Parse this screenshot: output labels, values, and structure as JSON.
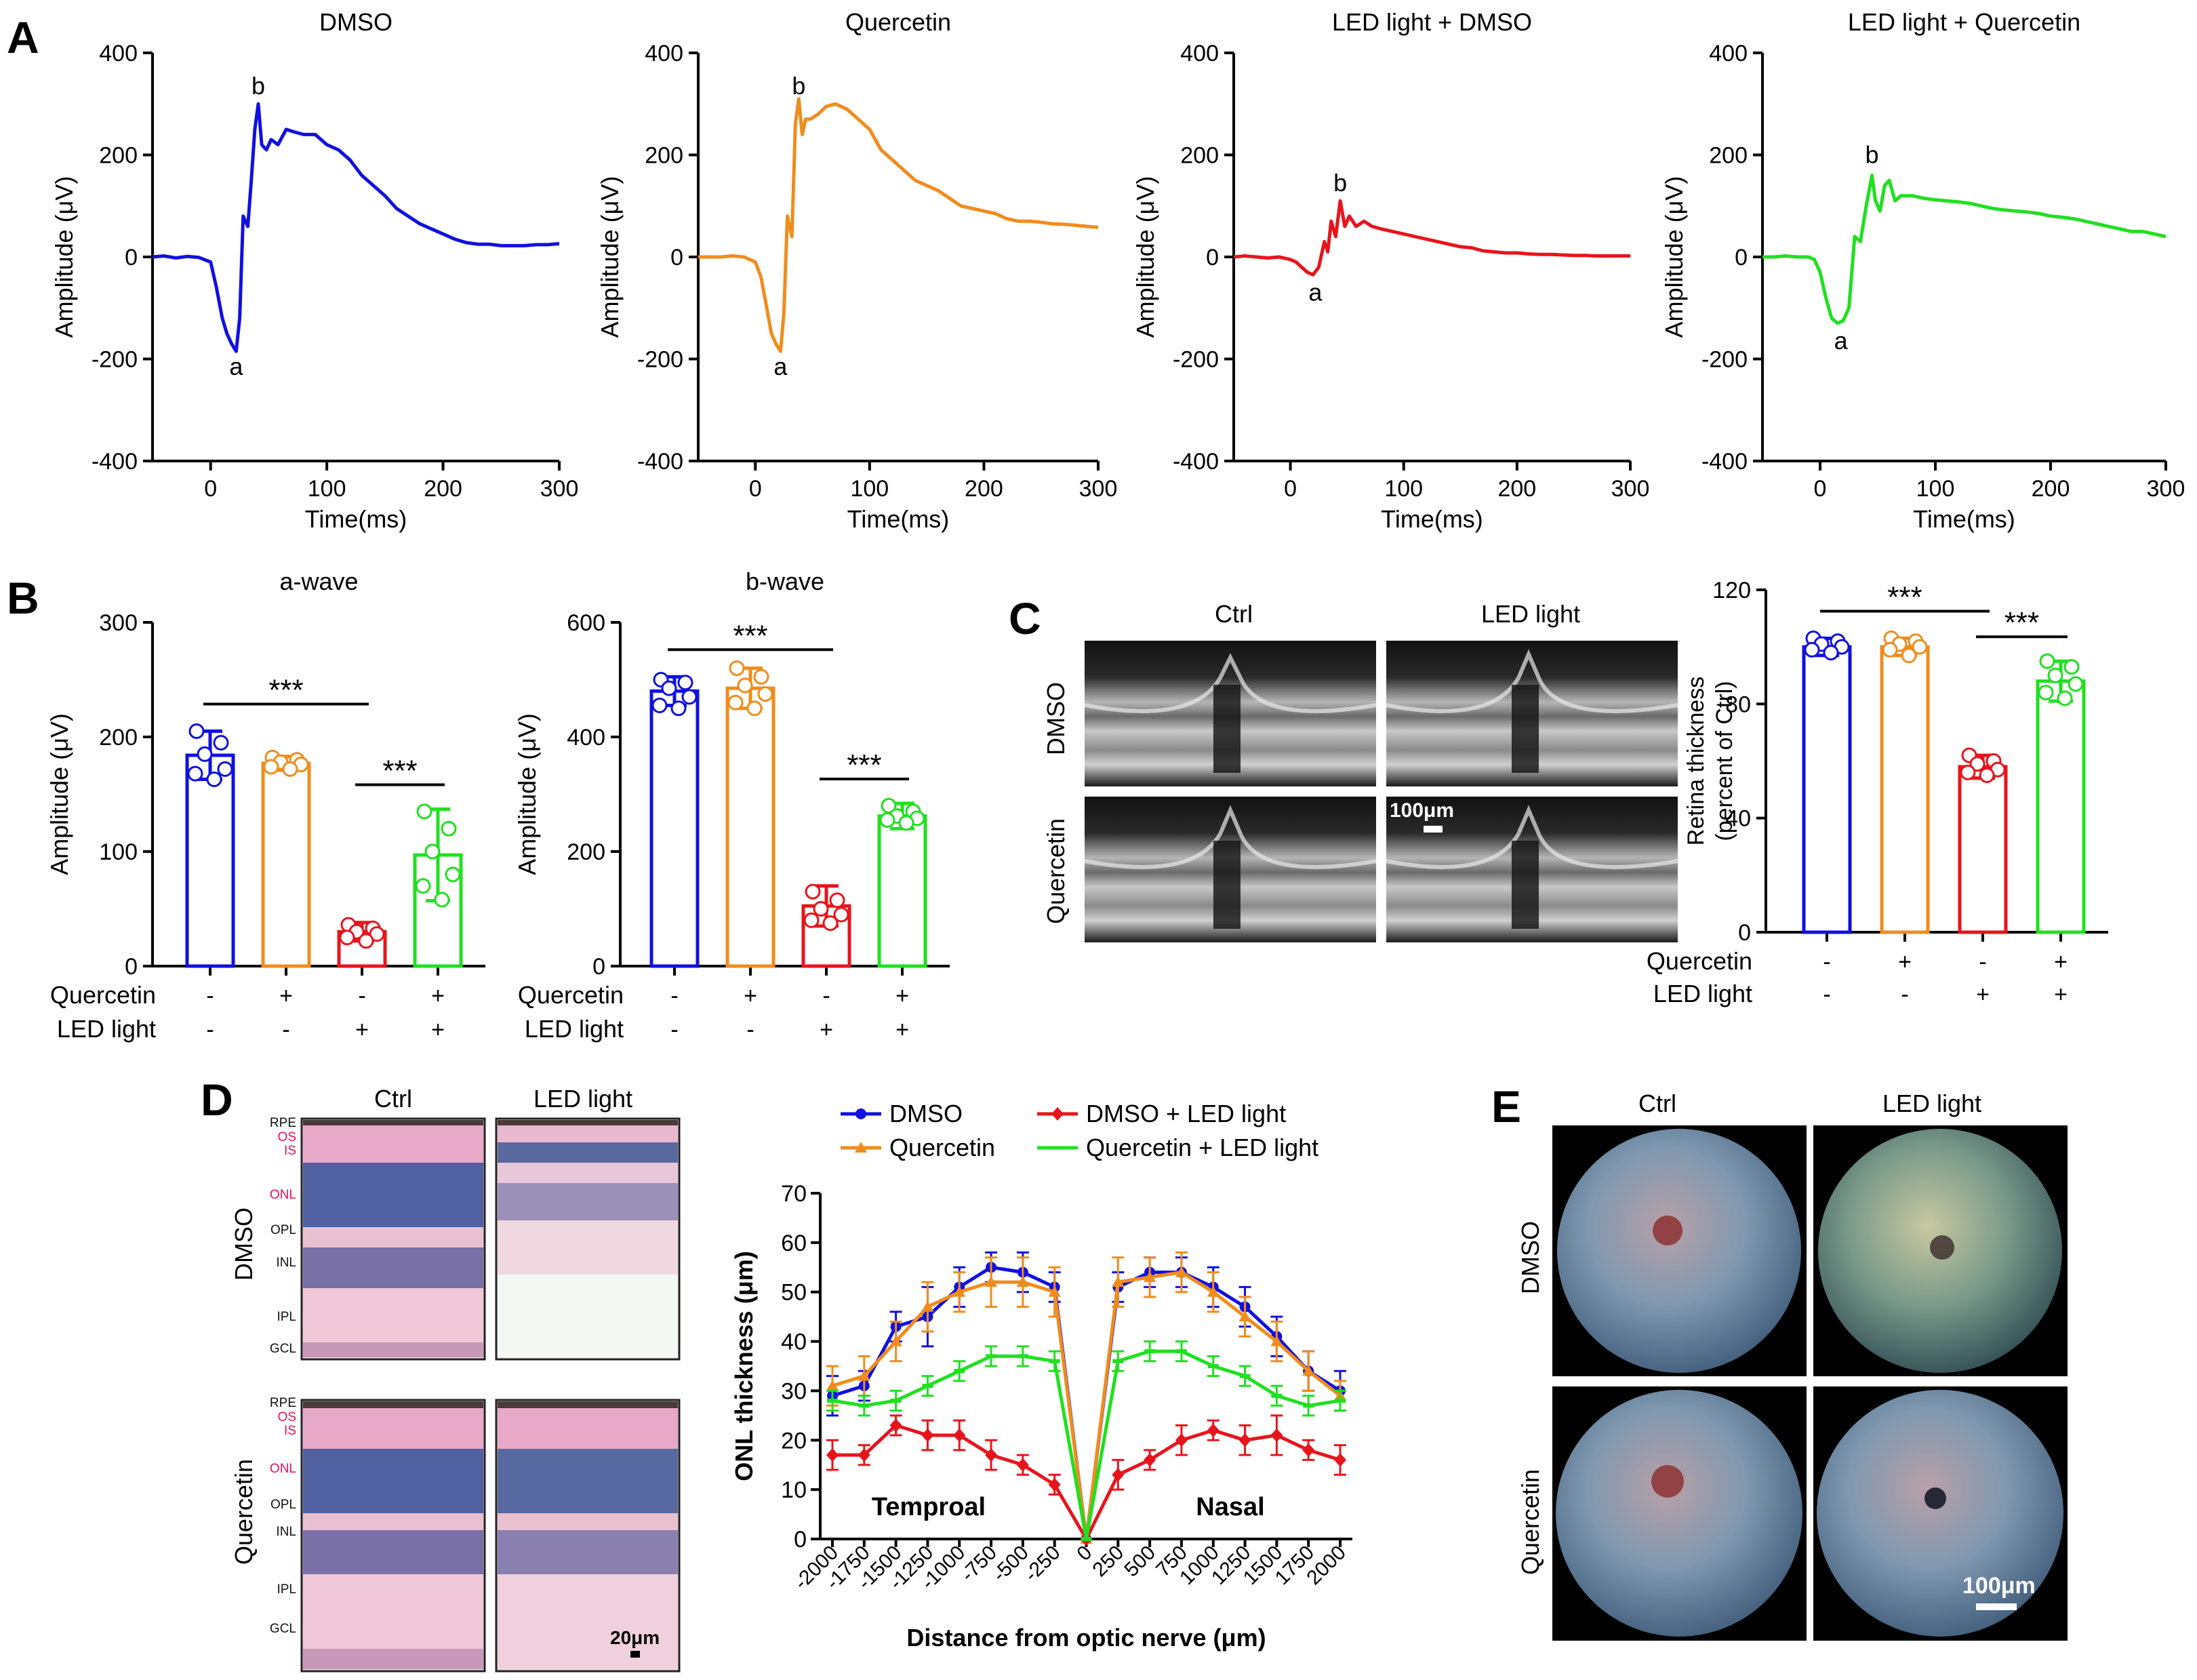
{
  "panel_labels": {
    "A": "A",
    "B": "B",
    "C": "C",
    "D": "D",
    "E": "E"
  },
  "chart_data": [
    {
      "id": "erg-dmso",
      "type": "line",
      "title": "DMSO",
      "xlabel": "Time(ms)",
      "ylabel": "Amplitude (μV)",
      "xlim": [
        -50,
        300
      ],
      "ylim": [
        -400,
        400
      ],
      "xticks": [
        0,
        100,
        200,
        300
      ],
      "yticks": [
        -400,
        -200,
        0,
        200,
        400
      ],
      "color": "#1010e0",
      "x": [
        -50,
        -40,
        -30,
        -20,
        -10,
        0,
        5,
        10,
        14,
        18,
        22,
        25,
        28,
        32,
        35,
        38,
        41,
        44,
        48,
        52,
        58,
        65,
        72,
        80,
        90,
        100,
        110,
        120,
        130,
        140,
        150,
        160,
        170,
        180,
        190,
        200,
        210,
        220,
        230,
        240,
        250,
        260,
        270,
        280,
        290,
        300
      ],
      "y": [
        0,
        2,
        -2,
        1,
        -1,
        -10,
        -60,
        -120,
        -150,
        -170,
        -185,
        -120,
        80,
        60,
        150,
        250,
        300,
        220,
        210,
        230,
        220,
        250,
        245,
        240,
        240,
        220,
        210,
        190,
        160,
        140,
        120,
        95,
        80,
        65,
        55,
        45,
        35,
        28,
        25,
        25,
        22,
        22,
        22,
        24,
        24,
        26
      ],
      "annotations": [
        {
          "text": "a",
          "x": 22,
          "y": -215
        },
        {
          "text": "b",
          "x": 41,
          "y": 335
        }
      ]
    },
    {
      "id": "erg-quercetin",
      "type": "line",
      "title": "Quercetin",
      "xlabel": "Time(ms)",
      "ylabel": "Amplitude (μV)",
      "xlim": [
        -50,
        300
      ],
      "ylim": [
        -400,
        400
      ],
      "xticks": [
        0,
        100,
        200,
        300
      ],
      "yticks": [
        -400,
        -200,
        0,
        200,
        400
      ],
      "color": "#f08c1c",
      "x": [
        -50,
        -40,
        -30,
        -20,
        -10,
        0,
        5,
        10,
        14,
        18,
        22,
        25,
        28,
        32,
        35,
        38,
        41,
        44,
        48,
        55,
        62,
        70,
        80,
        90,
        100,
        110,
        120,
        130,
        140,
        150,
        160,
        170,
        180,
        190,
        200,
        210,
        220,
        230,
        240,
        250,
        260,
        270,
        280,
        290,
        300
      ],
      "y": [
        0,
        0,
        0,
        2,
        0,
        -10,
        -40,
        -100,
        -150,
        -170,
        -185,
        -110,
        80,
        40,
        260,
        310,
        240,
        270,
        270,
        280,
        295,
        300,
        290,
        270,
        250,
        210,
        190,
        170,
        150,
        140,
        130,
        115,
        100,
        95,
        90,
        85,
        75,
        70,
        70,
        68,
        65,
        64,
        62,
        60,
        58
      ],
      "annotations": [
        {
          "text": "a",
          "x": 22,
          "y": -215
        },
        {
          "text": "b",
          "x": 38,
          "y": 335
        }
      ]
    },
    {
      "id": "erg-led-dmso",
      "type": "line",
      "title": "LED light + DMSO",
      "xlabel": "Time(ms)",
      "ylabel": "Amplitude (μV)",
      "xlim": [
        -50,
        300
      ],
      "ylim": [
        -400,
        400
      ],
      "xticks": [
        0,
        100,
        200,
        300
      ],
      "yticks": [
        -400,
        -200,
        0,
        200,
        400
      ],
      "color": "#e8141c",
      "x": [
        -50,
        -40,
        -30,
        -20,
        -10,
        0,
        5,
        10,
        15,
        20,
        25,
        30,
        33,
        36,
        40,
        44,
        48,
        52,
        58,
        65,
        72,
        80,
        90,
        100,
        110,
        120,
        130,
        140,
        150,
        160,
        170,
        180,
        190,
        200,
        210,
        220,
        230,
        240,
        250,
        260,
        270,
        280,
        290,
        300
      ],
      "y": [
        0,
        2,
        0,
        -2,
        0,
        -5,
        -10,
        -20,
        -30,
        -35,
        -20,
        30,
        10,
        70,
        40,
        110,
        60,
        80,
        60,
        70,
        60,
        55,
        50,
        45,
        40,
        35,
        30,
        25,
        20,
        18,
        12,
        10,
        8,
        8,
        6,
        5,
        5,
        4,
        3,
        3,
        2,
        2,
        2,
        2
      ],
      "annotations": [
        {
          "text": "a",
          "x": 22,
          "y": -70
        },
        {
          "text": "b",
          "x": 44,
          "y": 145
        }
      ]
    },
    {
      "id": "erg-led-quercetin",
      "type": "line",
      "title": "LED light + Quercetin",
      "xlabel": "Time(ms)",
      "ylabel": "Amplitude (μV)",
      "xlim": [
        -50,
        300
      ],
      "ylim": [
        -400,
        400
      ],
      "xticks": [
        0,
        100,
        200,
        300
      ],
      "yticks": [
        -400,
        -200,
        0,
        200,
        400
      ],
      "color": "#20e020",
      "x": [
        -50,
        -40,
        -30,
        -20,
        -10,
        -5,
        0,
        5,
        10,
        15,
        20,
        25,
        30,
        35,
        40,
        45,
        48,
        52,
        56,
        60,
        65,
        70,
        80,
        90,
        100,
        110,
        120,
        130,
        140,
        150,
        160,
        170,
        180,
        190,
        200,
        210,
        220,
        230,
        240,
        250,
        260,
        270,
        280,
        290,
        300
      ],
      "y": [
        0,
        0,
        2,
        0,
        0,
        -5,
        -30,
        -80,
        -120,
        -130,
        -125,
        -100,
        40,
        30,
        100,
        160,
        110,
        90,
        140,
        150,
        110,
        120,
        120,
        115,
        112,
        110,
        108,
        105,
        100,
        95,
        92,
        90,
        88,
        85,
        80,
        78,
        75,
        70,
        65,
        60,
        55,
        50,
        50,
        45,
        40
      ],
      "annotations": [
        {
          "text": "a",
          "x": 18,
          "y": -165
        },
        {
          "text": "b",
          "x": 45,
          "y": 200
        }
      ]
    },
    {
      "id": "bar-a-wave",
      "type": "bar",
      "title": "a-wave",
      "ylabel": "Amplitude (μV)",
      "ylim": [
        0,
        300
      ],
      "yticks": [
        0,
        100,
        200,
        300
      ],
      "categories": [
        "DMSO",
        "Quercetin",
        "LED light + DMSO",
        "LED light + Quercetin"
      ],
      "values": [
        184,
        177,
        30,
        97
      ],
      "errors": [
        21,
        6,
        8,
        40
      ],
      "colors": [
        "#1010e0",
        "#f08c1c",
        "#e8141c",
        "#20e020"
      ],
      "points": [
        [
          205,
          195,
          185,
          172,
          168,
          163
        ],
        [
          182,
          180,
          178,
          176,
          174,
          172
        ],
        [
          36,
          33,
          30,
          28,
          25,
          22
        ],
        [
          135,
          120,
          100,
          80,
          70,
          58
        ]
      ],
      "rows": [
        {
          "label": "Quercetin",
          "signs": [
            "-",
            "+",
            "-",
            "+"
          ]
        },
        {
          "label": "LED light",
          "signs": [
            "-",
            "-",
            "+",
            "+"
          ]
        }
      ],
      "sig": [
        {
          "from": 0,
          "to": 2,
          "text": "***"
        },
        {
          "from": 2,
          "to": 3,
          "text": "***"
        }
      ]
    },
    {
      "id": "bar-b-wave",
      "type": "bar",
      "title": "b-wave",
      "ylabel": "Amplitude (μV)",
      "ylim": [
        0,
        600
      ],
      "yticks": [
        0,
        200,
        400,
        600
      ],
      "categories": [
        "DMSO",
        "Quercetin",
        "LED light + DMSO",
        "LED light + Quercetin"
      ],
      "values": [
        480,
        485,
        105,
        262
      ],
      "errors": [
        25,
        35,
        35,
        22
      ],
      "colors": [
        "#1010e0",
        "#f08c1c",
        "#e8141c",
        "#20e020"
      ],
      "points": [
        [
          500,
          495,
          485,
          470,
          455,
          450
        ],
        [
          520,
          505,
          490,
          475,
          460,
          450
        ],
        [
          130,
          115,
          100,
          90,
          80,
          75
        ],
        [
          280,
          270,
          262,
          258,
          255,
          250
        ]
      ],
      "rows": [
        {
          "label": "Quercetin",
          "signs": [
            "-",
            "+",
            "-",
            "+"
          ]
        },
        {
          "label": "LED light",
          "signs": [
            "-",
            "-",
            "+",
            "+"
          ]
        }
      ],
      "sig": [
        {
          "from": 0,
          "to": 2,
          "text": "***"
        },
        {
          "from": 2,
          "to": 3,
          "text": "***"
        }
      ]
    },
    {
      "id": "bar-retina-thickness",
      "type": "bar",
      "title": "",
      "ylabel": "Retina thickness (percent of Ctrl)",
      "ylim": [
        0,
        120
      ],
      "yticks": [
        0,
        40,
        80,
        120
      ],
      "categories": [
        "DMSO",
        "Quercetin",
        "LED light + DMSO",
        "LED light + Quercetin"
      ],
      "values": [
        100,
        100,
        58,
        88
      ],
      "errors": [
        3,
        3,
        4,
        7
      ],
      "colors": [
        "#1010e0",
        "#f08c1c",
        "#e8141c",
        "#20e020"
      ],
      "points": [
        [
          103,
          102,
          101,
          100,
          99,
          98
        ],
        [
          103,
          102,
          101,
          100,
          99,
          97
        ],
        [
          62,
          60,
          59,
          57,
          56,
          55
        ],
        [
          95,
          93,
          90,
          87,
          84,
          82
        ]
      ],
      "rows": [
        {
          "label": "Quercetin",
          "signs": [
            "-",
            "+",
            "-",
            "+"
          ]
        },
        {
          "label": "LED light",
          "signs": [
            "-",
            "-",
            "+",
            "+"
          ]
        }
      ],
      "sig": [
        {
          "from": 0,
          "to": 2,
          "text": "***"
        },
        {
          "from": 2,
          "to": 3,
          "text": "***"
        }
      ]
    },
    {
      "id": "onl-thickness",
      "type": "line",
      "title": "",
      "xlabel": "Distance from optic nerve (μm)",
      "ylabel": "ONL thickness (μm)",
      "ylim": [
        0,
        70
      ],
      "yticks": [
        0,
        10,
        20,
        30,
        40,
        50,
        60,
        70
      ],
      "x": [
        -2000,
        -1750,
        -1500,
        -1250,
        -1000,
        -750,
        -500,
        -250,
        0,
        250,
        500,
        750,
        1000,
        1250,
        1500,
        1750,
        2000
      ],
      "xticklabels": [
        "-2000",
        "-1750",
        "-1500",
        "-1250",
        "-1000",
        "-750",
        "-500",
        "-250",
        "0",
        "250",
        "500",
        "750",
        "1000",
        "1250",
        "1500",
        "1750",
        "2000"
      ],
      "region_labels": [
        "Temproal",
        "Nasal"
      ],
      "series": [
        {
          "name": "DMSO",
          "color": "#1010e0",
          "marker": "circle",
          "values": [
            29,
            31,
            43,
            45,
            51,
            55,
            54,
            51,
            0,
            51,
            54,
            54,
            51,
            47,
            41,
            34,
            30
          ],
          "errors": [
            4,
            3,
            3,
            6,
            4,
            3,
            4,
            3,
            0,
            3,
            3,
            3,
            4,
            4,
            4,
            4,
            4
          ]
        },
        {
          "name": "Quercetin",
          "color": "#f08c1c",
          "marker": "triangle",
          "values": [
            31,
            33,
            40,
            47,
            50,
            52,
            52,
            50,
            0,
            52,
            53,
            54,
            50,
            45,
            40,
            34,
            29
          ],
          "errors": [
            4,
            4,
            4,
            5,
            4,
            5,
            5,
            5,
            0,
            5,
            4,
            4,
            4,
            4,
            4,
            4,
            3
          ]
        },
        {
          "name": "DMSO + LED light",
          "color": "#e8141c",
          "marker": "diamond",
          "values": [
            17,
            17,
            23,
            21,
            21,
            17,
            15,
            11,
            0,
            13,
            16,
            20,
            22,
            20,
            21,
            18,
            16
          ],
          "errors": [
            3,
            2,
            2,
            3,
            3,
            3,
            2,
            2,
            0,
            3,
            2,
            3,
            2,
            3,
            4,
            2,
            3
          ]
        },
        {
          "name": "Quercetin + LED light",
          "color": "#20e020",
          "marker": "line",
          "values": [
            28,
            27,
            28,
            31,
            34,
            37,
            37,
            36,
            0,
            36,
            38,
            38,
            35,
            33,
            29,
            27,
            28
          ],
          "errors": [
            2,
            2,
            2,
            2,
            2,
            2,
            2,
            2,
            0,
            2,
            2,
            2,
            2,
            2,
            2,
            2,
            2
          ]
        }
      ]
    }
  ],
  "panel_c": {
    "col_labels": [
      "Ctrl",
      "LED light"
    ],
    "row_labels": [
      "DMSO",
      "Quercetin"
    ],
    "scale_bar": "100μm"
  },
  "panel_d": {
    "col_labels": [
      "Ctrl",
      "LED light"
    ],
    "row_labels": [
      "DMSO",
      "Quercetin"
    ],
    "layers": [
      "RPE",
      "OS",
      "IS",
      "ONL",
      "OPL",
      "INL",
      "IPL",
      "GCL"
    ],
    "layer_colors": [
      "#111111",
      "#e8105a",
      "#e8105a",
      "#e8105a",
      "#111111",
      "#111111",
      "#111111",
      "#111111"
    ],
    "scale_bar": "20μm"
  },
  "panel_e": {
    "col_labels": [
      "Ctrl",
      "LED light"
    ],
    "row_labels": [
      "DMSO",
      "Quercetin"
    ],
    "scale_bar": "100μm"
  }
}
